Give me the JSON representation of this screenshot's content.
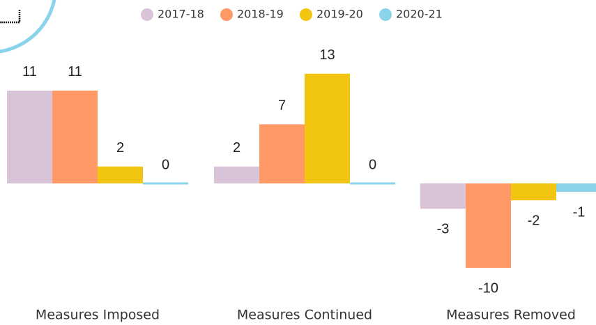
{
  "chart_data": {
    "type": "bar",
    "categories": [
      "Measures Imposed",
      "Measures Continued",
      "Measures Removed"
    ],
    "series": [
      {
        "name": "2017-18",
        "color": "#D9C3D8",
        "values": [
          11,
          2,
          -3
        ]
      },
      {
        "name": "2018-19",
        "color": "#FF9966",
        "values": [
          11,
          7,
          -10
        ]
      },
      {
        "name": "2019-20",
        "color": "#F2C511",
        "values": [
          2,
          13,
          -2
        ]
      },
      {
        "name": "2020-21",
        "color": "#8AD4EB",
        "values": [
          0,
          0,
          -1
        ]
      }
    ]
  }
}
